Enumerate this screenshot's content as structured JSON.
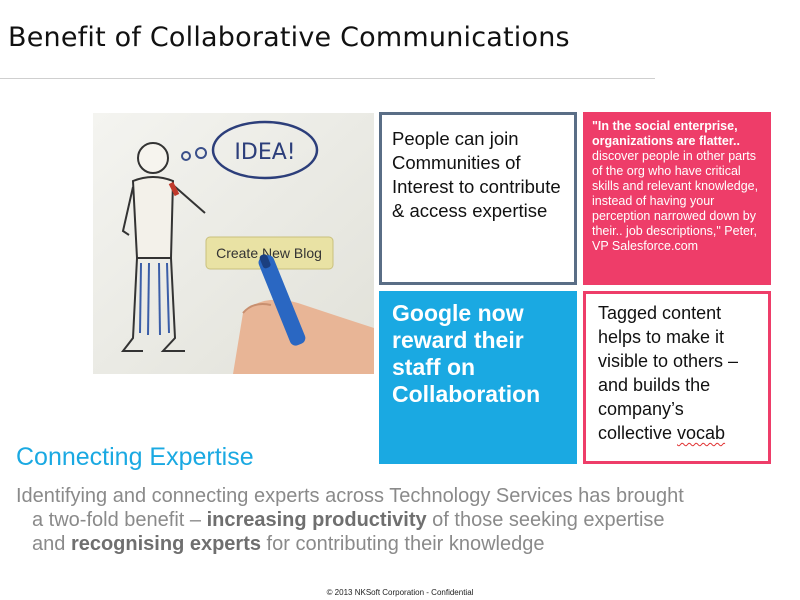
{
  "slide": {
    "title": "Benefit of Collaborative Communications"
  },
  "photo": {
    "bubble_text": "IDEA!",
    "button_text": "Create New Blog"
  },
  "boxes": {
    "communities": {
      "text": "People can join Communities of Interest to contribute & access expertise",
      "border_color": "#5a6e86"
    },
    "quote": {
      "bold_text": "\"In the social enterprise, organizations are flatter..",
      "text": " discover people in other parts of the org who have critical skills and relevant knowledge, instead of having your perception narrowed down by their.. job descriptions,\" Peter, VP Salesforce.com",
      "background": "#ee3d69"
    },
    "google": {
      "text": "Google now reward their staff on Collaboration",
      "background": "#1aa9e2"
    },
    "tagged": {
      "text": "Tagged content helps to make it visible to others – and builds the company’s collective ",
      "underlined_word": "vocab",
      "border_color": "#ee3d69"
    }
  },
  "section": {
    "heading": "Connecting Expertise",
    "line1": "Identifying and connecting experts across Technology Services has brought",
    "line2_pre": "a two-fold benefit – ",
    "line2_bold": "increasing productivity",
    "line2_post": " of those seeking expertise",
    "line3_pre": "and ",
    "line3_bold": "recognising experts",
    "line3_post": " for contributing their knowledge"
  },
  "footer": {
    "text": "© 2013 NKSoft Corporation  -  Confidential"
  }
}
